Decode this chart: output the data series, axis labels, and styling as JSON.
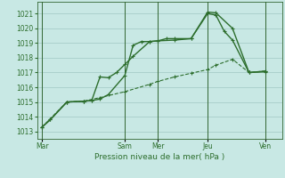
{
  "background_color": "#c8e8e4",
  "grid_color": "#a0c8c4",
  "line_color": "#2d6e2d",
  "title": "Pression niveau de la mer( hPa )",
  "ylim": [
    1012.5,
    1021.8
  ],
  "yticks": [
    1013,
    1014,
    1015,
    1016,
    1017,
    1018,
    1019,
    1020,
    1021
  ],
  "day_labels": [
    "Mar",
    "Sam",
    "Mer",
    "Jeu",
    "Ven"
  ],
  "day_tick_positions": [
    0,
    5,
    7,
    10,
    13.5
  ],
  "vline_positions": [
    0,
    5,
    7,
    10,
    13.5
  ],
  "xlim": [
    -0.3,
    14.5
  ],
  "series1_x": [
    0,
    0.5,
    1.5,
    2.5,
    3.0,
    3.5,
    4.0,
    4.5,
    5.0,
    5.5,
    6.5,
    7.0,
    8.0,
    9.0,
    10.0,
    10.5,
    11.5,
    12.5,
    13.5
  ],
  "series1_y": [
    1013.3,
    1013.8,
    1015.0,
    1015.05,
    1015.1,
    1016.7,
    1016.65,
    1017.0,
    1017.55,
    1018.1,
    1019.1,
    1019.15,
    1019.2,
    1019.3,
    1021.1,
    1021.05,
    1020.0,
    1017.0,
    1017.1
  ],
  "series2_x": [
    0,
    0.5,
    1.5,
    2.5,
    3.0,
    3.5,
    4.0,
    5.0,
    5.5,
    6.0,
    6.5,
    7.0,
    7.5,
    8.0,
    9.0,
    10.0,
    10.5,
    11.0,
    11.5,
    12.5,
    13.5
  ],
  "series2_y": [
    1013.3,
    1013.8,
    1015.0,
    1015.05,
    1015.1,
    1015.2,
    1015.5,
    1016.8,
    1018.85,
    1019.1,
    1019.1,
    1019.15,
    1019.3,
    1019.3,
    1019.3,
    1021.0,
    1020.9,
    1019.8,
    1019.2,
    1017.0,
    1017.05
  ],
  "series3_x": [
    0,
    1.5,
    2.5,
    3.5,
    5.0,
    6.5,
    7.0,
    8.0,
    9.0,
    10.0,
    10.5,
    11.5,
    12.5,
    13.5
  ],
  "series3_y": [
    1013.3,
    1015.0,
    1015.05,
    1015.3,
    1015.7,
    1016.2,
    1016.4,
    1016.7,
    1016.95,
    1017.2,
    1017.5,
    1017.9,
    1017.0,
    1017.1
  ]
}
